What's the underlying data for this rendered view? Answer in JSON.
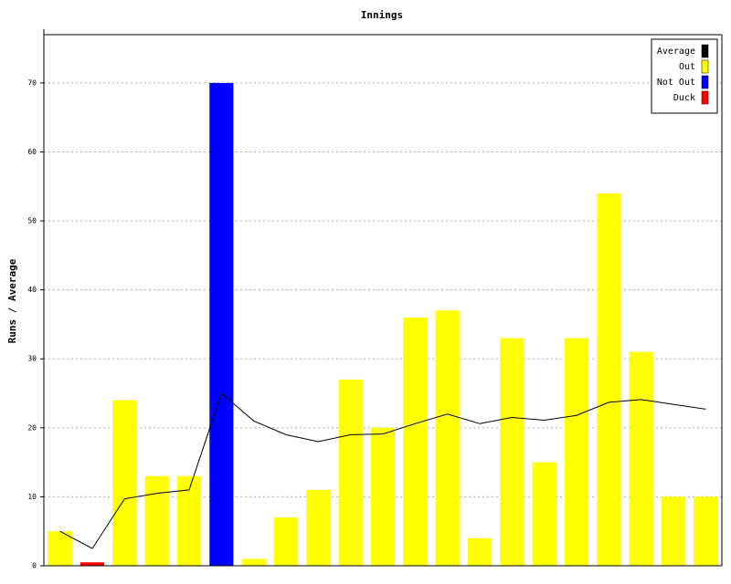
{
  "chart_data": {
    "type": "bar",
    "title": "Innings",
    "y_label": "Runs / Average",
    "categories": [
      null,
      null,
      null,
      null,
      null,
      null,
      null,
      null,
      null,
      null,
      null,
      null,
      null,
      null,
      null,
      null,
      null,
      null,
      null,
      null,
      null
    ],
    "series": [
      {
        "name": "Average",
        "type": "line",
        "color": "#000000",
        "values": [
          5,
          2.5,
          9.7,
          10.5,
          11,
          25,
          21,
          19,
          18,
          19,
          19.1,
          20.6,
          22,
          20.6,
          21.5,
          21.1,
          21.8,
          23.7,
          24.1,
          23.4,
          22.7
        ]
      },
      {
        "name": "Out",
        "type": "bar",
        "color": "#ffff00",
        "values": [
          5,
          null,
          24,
          13,
          13,
          null,
          1,
          7,
          11,
          27,
          20,
          36,
          37,
          4,
          33,
          15,
          33,
          54,
          31,
          10,
          10
        ]
      },
      {
        "name": "Not Out",
        "type": "bar",
        "color": "#0000ff",
        "values": [
          null,
          null,
          null,
          null,
          null,
          70,
          null,
          null,
          null,
          null,
          null,
          null,
          null,
          null,
          null,
          null,
          null,
          null,
          null,
          null,
          null
        ]
      },
      {
        "name": "Duck",
        "type": "bar",
        "color": "#ff0000",
        "values": [
          null,
          0.5,
          null,
          null,
          null,
          null,
          null,
          null,
          null,
          null,
          null,
          null,
          null,
          null,
          null,
          null,
          null,
          null,
          null,
          null,
          null
        ]
      }
    ],
    "ylim": [
      0,
      77
    ],
    "yticks": [
      0,
      10,
      20,
      30,
      40,
      50,
      60,
      70
    ],
    "grid": true,
    "legend": "top-right"
  }
}
